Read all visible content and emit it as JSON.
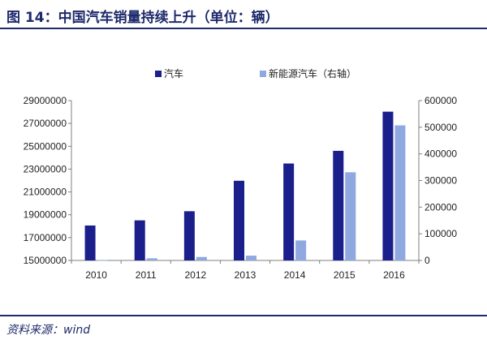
{
  "figure": {
    "title": "图 14：中国汽车销量持续上升（单位：辆）",
    "source": "资料来源：wind"
  },
  "chart_data": {
    "type": "bar",
    "categories": [
      "2010",
      "2011",
      "2012",
      "2013",
      "2014",
      "2015",
      "2016"
    ],
    "series": [
      {
        "name": "汽车",
        "axis": "left",
        "color": "#1a1f8c",
        "values": [
          18060000,
          18510000,
          19310000,
          21980000,
          23490000,
          24600000,
          28030000
        ]
      },
      {
        "name": "新能源汽车（右轴）",
        "axis": "right",
        "color": "#8fa8e0",
        "values": [
          1000,
          8000,
          13000,
          18000,
          75000,
          331000,
          507000
        ]
      }
    ],
    "left_axis": {
      "ylim": [
        15000000,
        29000000
      ],
      "ticks": [
        "29000000",
        "27000000",
        "25000000",
        "23000000",
        "21000000",
        "19000000",
        "17000000",
        "15000000"
      ]
    },
    "right_axis": {
      "ylim": [
        0,
        600000
      ],
      "ticks": [
        "600000",
        "500000",
        "400000",
        "300000",
        "200000",
        "100000",
        "0"
      ]
    },
    "legend_position": "top",
    "grid": false
  }
}
